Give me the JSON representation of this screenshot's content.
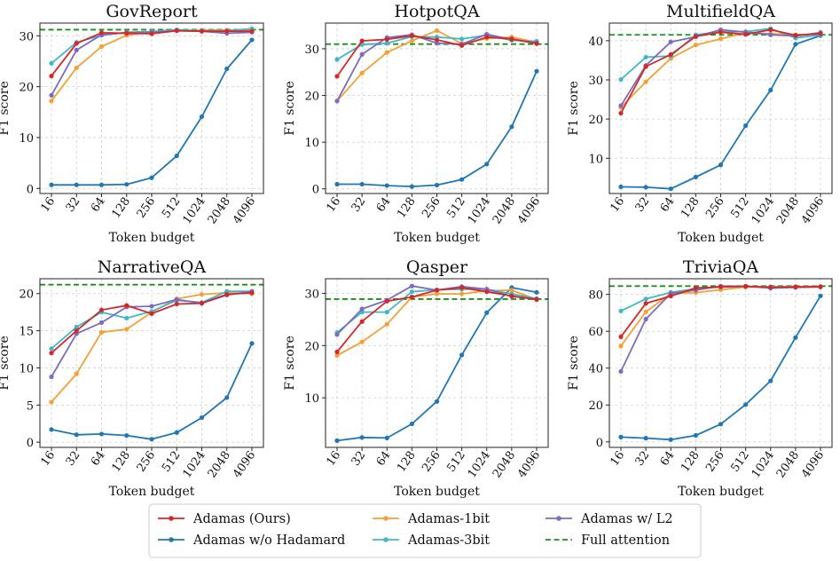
{
  "chart_data": [
    {
      "type": "line",
      "title": "GovReport",
      "xlabel": "Token budget",
      "ylabel": "F1 score",
      "x": [
        "16",
        "32",
        "64",
        "128",
        "256",
        "512",
        "1024",
        "2048",
        "4096"
      ],
      "yticks": [
        0,
        10,
        20,
        30
      ],
      "ylim": [
        -1,
        32.5
      ],
      "full_attention": 31.2,
      "series": [
        {
          "name": "Adamas w/o Hadamard",
          "values": [
            0.7,
            0.7,
            0.7,
            0.8,
            2.1,
            6.4,
            14.1,
            23.5,
            29.2
          ]
        },
        {
          "name": "Adamas-1bit",
          "values": [
            17.2,
            23.7,
            27.9,
            30.1,
            30.8,
            31.0,
            31.1,
            31.1,
            31.1
          ]
        },
        {
          "name": "Adamas-3bit",
          "values": [
            24.6,
            28.7,
            30.1,
            30.7,
            30.8,
            31.2,
            31.0,
            31.0,
            31.4
          ]
        },
        {
          "name": "Adamas w/ L2",
          "values": [
            18.3,
            27.2,
            30.2,
            30.6,
            30.7,
            31.0,
            30.9,
            30.5,
            30.7
          ]
        },
        {
          "name": "Adamas (Ours)",
          "values": [
            22.1,
            28.5,
            30.6,
            30.5,
            30.4,
            31.0,
            30.9,
            30.9,
            30.9
          ]
        }
      ]
    },
    {
      "type": "line",
      "title": "HotpotQA",
      "xlabel": "Token budget",
      "ylabel": "F1 score",
      "x": [
        "16",
        "32",
        "64",
        "128",
        "256",
        "512",
        "1024",
        "2048",
        "4096"
      ],
      "yticks": [
        0,
        10,
        20,
        30
      ],
      "ylim": [
        -1,
        35.5
      ],
      "full_attention": 31.0,
      "series": [
        {
          "name": "Adamas w/o Hadamard",
          "values": [
            1.0,
            1.0,
            0.7,
            0.5,
            0.8,
            2.0,
            5.3,
            13.3,
            25.2
          ]
        },
        {
          "name": "Adamas-1bit",
          "values": [
            18.8,
            24.8,
            29.2,
            31.7,
            33.9,
            31.1,
            32.2,
            32.5,
            31.4
          ]
        },
        {
          "name": "Adamas-3bit",
          "values": [
            27.7,
            30.9,
            31.2,
            32.6,
            32.5,
            32.1,
            32.9,
            31.8,
            31.6
          ]
        },
        {
          "name": "Adamas w/ L2",
          "values": [
            18.8,
            28.8,
            32.4,
            33.0,
            31.2,
            31.0,
            33.1,
            32.0,
            31.3
          ]
        },
        {
          "name": "Adamas (Ours)",
          "values": [
            24.1,
            31.7,
            32.0,
            32.8,
            31.9,
            30.7,
            32.5,
            32.1,
            31.1
          ]
        }
      ]
    },
    {
      "type": "line",
      "title": "MultifieldQA",
      "xlabel": "Token budget",
      "ylabel": "F1 score",
      "x": [
        "16",
        "32",
        "64",
        "128",
        "256",
        "512",
        "1024",
        "2048",
        "4096"
      ],
      "yticks": [
        10,
        20,
        30,
        40
      ],
      "ylim": [
        1,
        44.5
      ],
      "full_attention": 41.5,
      "series": [
        {
          "name": "Adamas w/o Hadamard",
          "values": [
            2.7,
            2.6,
            2.2,
            5.2,
            8.3,
            18.3,
            27.4,
            39.1,
            41.3
          ]
        },
        {
          "name": "Adamas-1bit",
          "values": [
            23.0,
            29.5,
            35.5,
            38.9,
            40.5,
            42.0,
            41.8,
            41.5,
            41.7
          ]
        },
        {
          "name": "Adamas-3bit",
          "values": [
            30.1,
            35.8,
            36.1,
            41.5,
            42.3,
            42.3,
            43.1,
            40.7,
            41.5
          ]
        },
        {
          "name": "Adamas w/ L2",
          "values": [
            23.4,
            33.7,
            39.7,
            41.0,
            42.8,
            42.2,
            41.5,
            41.2,
            42.1
          ]
        },
        {
          "name": "Adamas (Ours)",
          "values": [
            21.5,
            33.4,
            36.5,
            41.1,
            42.2,
            41.6,
            42.8,
            41.4,
            41.8
          ]
        }
      ]
    },
    {
      "type": "line",
      "title": "NarrativeQA",
      "xlabel": "Token budget",
      "ylabel": "F1 score",
      "x": [
        "16",
        "32",
        "64",
        "128",
        "256",
        "512",
        "1024",
        "2048",
        "4096"
      ],
      "yticks": [
        0,
        5,
        10,
        15,
        20
      ],
      "ylim": [
        -0.7,
        22.0
      ],
      "full_attention": 21.2,
      "series": [
        {
          "name": "Adamas w/o Hadamard",
          "values": [
            1.7,
            1.0,
            1.1,
            0.9,
            0.4,
            1.3,
            3.3,
            6.0,
            13.3
          ]
        },
        {
          "name": "Adamas-1bit",
          "values": [
            5.4,
            9.2,
            14.8,
            15.2,
            17.5,
            19.3,
            19.9,
            20.1,
            20.0
          ]
        },
        {
          "name": "Adamas-3bit",
          "values": [
            12.6,
            15.5,
            17.5,
            16.7,
            17.6,
            19.1,
            18.8,
            20.3,
            20.3
          ]
        },
        {
          "name": "Adamas w/ L2",
          "values": [
            8.8,
            14.6,
            16.1,
            18.2,
            18.3,
            19.2,
            18.7,
            19.8,
            20.3
          ]
        },
        {
          "name": "Adamas (Ours)",
          "values": [
            12.0,
            15.0,
            17.8,
            18.4,
            17.3,
            18.6,
            18.7,
            19.9,
            20.1
          ]
        }
      ]
    },
    {
      "type": "line",
      "title": "Qasper",
      "xlabel": "Token budget",
      "ylabel": "F1 score",
      "x": [
        "16",
        "32",
        "64",
        "128",
        "256",
        "512",
        "1024",
        "2048",
        "4096"
      ],
      "yticks": [
        10,
        20,
        30
      ],
      "ylim": [
        0.5,
        32.8
      ],
      "full_attention": 28.9,
      "series": [
        {
          "name": "Adamas w/o Hadamard",
          "values": [
            1.8,
            2.4,
            2.3,
            5.0,
            9.3,
            18.2,
            26.3,
            31.1,
            30.2
          ]
        },
        {
          "name": "Adamas-1bit",
          "values": [
            18.1,
            20.7,
            24.1,
            29.3,
            29.9,
            29.9,
            30.5,
            30.6,
            28.8
          ]
        },
        {
          "name": "Adamas-3bit",
          "values": [
            22.5,
            26.4,
            26.4,
            30.3,
            30.7,
            30.8,
            30.8,
            29.9,
            29.0
          ]
        },
        {
          "name": "Adamas w/ L2",
          "values": [
            22.1,
            27.0,
            28.7,
            31.4,
            30.6,
            31.3,
            30.8,
            29.4,
            28.9
          ]
        },
        {
          "name": "Adamas (Ours)",
          "values": [
            18.8,
            24.6,
            28.5,
            29.3,
            30.6,
            31.1,
            30.3,
            29.5,
            28.8
          ]
        }
      ]
    },
    {
      "type": "line",
      "title": "TriviaQA",
      "xlabel": "Token budget",
      "ylabel": "F1 score",
      "x": [
        "16",
        "32",
        "64",
        "128",
        "256",
        "512",
        "1024",
        "2048",
        "4096"
      ],
      "yticks": [
        0,
        20,
        40,
        60,
        80
      ],
      "ylim": [
        -3,
        88.5
      ],
      "full_attention": 84.5,
      "series": [
        {
          "name": "Adamas w/o Hadamard",
          "values": [
            2.6,
            2.0,
            1.2,
            3.5,
            9.6,
            20.2,
            33.1,
            56.6,
            79.2
          ]
        },
        {
          "name": "Adamas-1bit",
          "values": [
            52.0,
            70.5,
            80.5,
            81.0,
            82.5,
            84.0,
            84.0,
            84.2,
            84.3
          ]
        },
        {
          "name": "Adamas-3bit",
          "values": [
            71.0,
            77.5,
            81.1,
            83.0,
            84.0,
            84.2,
            84.1,
            84.0,
            84.1
          ]
        },
        {
          "name": "Adamas w/ L2",
          "values": [
            38.2,
            66.6,
            80.5,
            82.3,
            84.5,
            84.4,
            83.4,
            83.8,
            84.0
          ]
        },
        {
          "name": "Adamas (Ours)",
          "values": [
            57.0,
            75.1,
            79.1,
            83.5,
            84.1,
            84.4,
            83.9,
            84.1,
            84.2
          ]
        }
      ]
    }
  ],
  "colors": {
    "Adamas (Ours)": "#d62728",
    "Adamas w/o Hadamard": "#1f77b4",
    "Adamas-1bit": "#f5a033",
    "Adamas-3bit": "#40b8c8",
    "Adamas w/ L2": "#7b6cc1",
    "Full attention": "#1a8f1a"
  },
  "legend": [
    {
      "label": "Adamas (Ours)",
      "style": "line-marker"
    },
    {
      "label": "Adamas w/o Hadamard",
      "style": "line-marker"
    },
    {
      "label": "Adamas-1bit",
      "style": "line-marker"
    },
    {
      "label": "Adamas-3bit",
      "style": "line-marker"
    },
    {
      "label": "Adamas w/ L2",
      "style": "line-marker"
    },
    {
      "label": "Full attention",
      "style": "dashed"
    }
  ]
}
